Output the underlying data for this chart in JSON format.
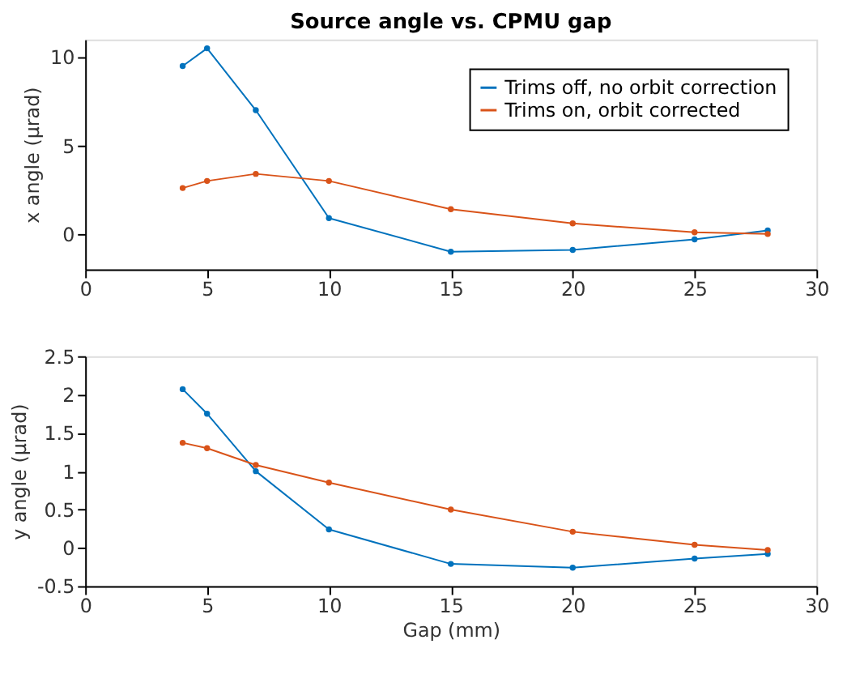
{
  "chart_data": [
    {
      "type": "line",
      "title": "Source angle vs. CPMU gap",
      "ylabel": "x angle (μrad)",
      "x": [
        4,
        5,
        7,
        10,
        15,
        20,
        25,
        28
      ],
      "xlim": [
        0,
        30
      ],
      "xticks": [
        0,
        5,
        10,
        15,
        20,
        25,
        30
      ],
      "ylim": [
        -2,
        11
      ],
      "yticks": [
        0,
        5,
        10
      ],
      "grid": false,
      "marker": "circle",
      "line_style": "solid",
      "legend": "top right",
      "series": [
        {
          "name": "Trims off, no orbit correction",
          "color": "#0072bd",
          "values": [
            9.5,
            10.5,
            7.0,
            0.9,
            -1.0,
            -0.9,
            -0.3,
            0.2
          ]
        },
        {
          "name": "Trims on, orbit corrected",
          "color": "#d95319",
          "values": [
            2.6,
            3.0,
            3.4,
            3.0,
            1.4,
            0.6,
            0.1,
            0.0
          ]
        }
      ]
    },
    {
      "type": "line",
      "xlabel": "Gap (mm)",
      "ylabel": "y angle (μrad)",
      "x": [
        4,
        5,
        7,
        10,
        15,
        20,
        25,
        28
      ],
      "xlim": [
        0,
        30
      ],
      "xticks": [
        0,
        5,
        10,
        15,
        20,
        25,
        30
      ],
      "ylim": [
        -0.5,
        2.5
      ],
      "yticks": [
        -0.5,
        0,
        0.5,
        1,
        1.5,
        2,
        2.5
      ],
      "grid": false,
      "marker": "circle",
      "line_style": "solid",
      "legend": false,
      "series": [
        {
          "color": "#0072bd",
          "values": [
            2.07,
            1.75,
            1.0,
            0.24,
            -0.21,
            -0.26,
            -0.14,
            -0.08
          ]
        },
        {
          "color": "#d95319",
          "values": [
            1.37,
            1.3,
            1.08,
            0.85,
            0.5,
            0.21,
            0.04,
            -0.03
          ]
        }
      ]
    }
  ]
}
